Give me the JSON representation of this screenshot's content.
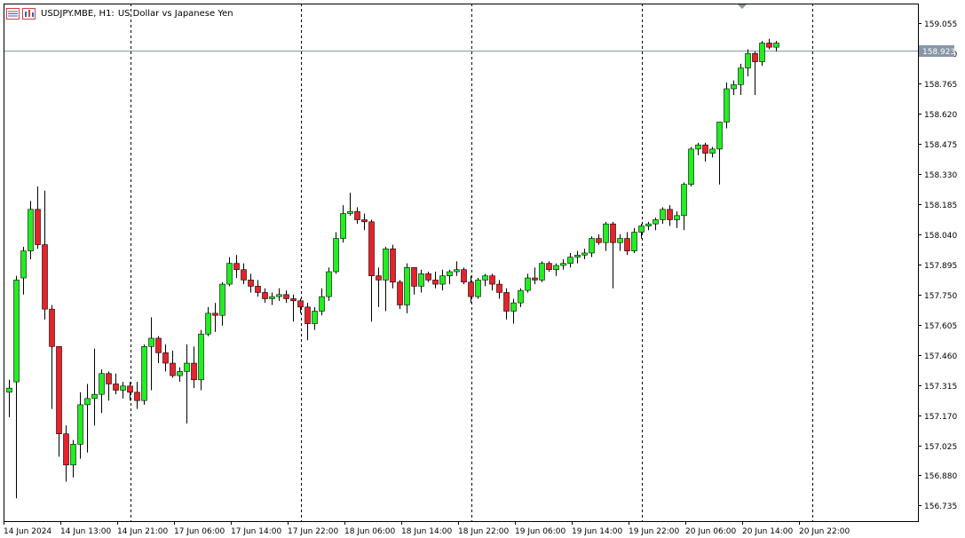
{
  "header": {
    "symbol": "USDJPY.MBE, H1:",
    "description": "US Dollar vs Japanese Yen",
    "icons": [
      "list-icon",
      "chart-icon"
    ]
  },
  "price_label": "158.923",
  "colors": {
    "bull": "#22ee22",
    "bear": "#e8222a",
    "wick": "#000000",
    "background": "#ffffff",
    "price_line": "#8896a8",
    "price_label_bg": "#8896a8"
  },
  "chart_data": {
    "type": "candlestick",
    "symbol": "USDJPY.MBE",
    "timeframe": "H1",
    "ylim": [
      156.66,
      159.15
    ],
    "y_ticks": [
      "159.055",
      "158.910",
      "158.765",
      "158.620",
      "158.475",
      "158.330",
      "158.185",
      "158.040",
      "157.895",
      "157.750",
      "157.605",
      "157.460",
      "157.315",
      "157.170",
      "157.025",
      "156.880",
      "156.735"
    ],
    "x_ticks": [
      "14 Jun 2024",
      "14 Jun 13:00",
      "14 Jun 21:00",
      "17 Jun 06:00",
      "17 Jun 14:00",
      "17 Jun 22:00",
      "18 Jun 06:00",
      "18 Jun 14:00",
      "18 Jun 22:00",
      "19 Jun 06:00",
      "19 Jun 14:00",
      "19 Jun 22:00",
      "20 Jun 06:00",
      "20 Jun 14:00",
      "20 Jun 22:00"
    ],
    "period_separators": [
      "14 Jun 21:00",
      "17 Jun 22:00",
      "18 Jun 22:00",
      "19 Jun 22:00",
      "20 Jun 22:00"
    ],
    "current_price": 158.923,
    "candles": [
      [
        157.28,
        157.34,
        157.16,
        157.3
      ],
      [
        157.33,
        157.84,
        156.77,
        157.82
      ],
      [
        157.83,
        157.98,
        157.75,
        157.96
      ],
      [
        157.96,
        158.2,
        157.92,
        158.16
      ],
      [
        158.16,
        158.27,
        157.97,
        157.99
      ],
      [
        157.99,
        158.25,
        157.63,
        157.68
      ],
      [
        157.68,
        157.7,
        157.2,
        157.5
      ],
      [
        157.5,
        157.5,
        156.97,
        157.08
      ],
      [
        157.08,
        157.12,
        156.85,
        156.93
      ],
      [
        156.93,
        157.05,
        156.87,
        157.03
      ],
      [
        157.03,
        157.28,
        156.96,
        157.22
      ],
      [
        157.22,
        157.32,
        156.99,
        157.25
      ],
      [
        157.25,
        157.49,
        157.12,
        157.27
      ],
      [
        157.27,
        157.39,
        157.18,
        157.37
      ],
      [
        157.37,
        157.38,
        157.24,
        157.32
      ],
      [
        157.32,
        157.37,
        157.27,
        157.29
      ],
      [
        157.29,
        157.33,
        157.25,
        157.31
      ],
      [
        157.31,
        157.33,
        157.24,
        157.28
      ],
      [
        157.28,
        157.33,
        157.2,
        157.24
      ],
      [
        157.24,
        157.51,
        157.22,
        157.5
      ],
      [
        157.5,
        157.64,
        157.29,
        157.54
      ],
      [
        157.54,
        157.55,
        157.42,
        157.47
      ],
      [
        157.47,
        157.51,
        157.38,
        157.42
      ],
      [
        157.42,
        157.48,
        157.35,
        157.36
      ],
      [
        157.36,
        157.4,
        157.33,
        157.38
      ],
      [
        157.38,
        157.51,
        157.13,
        157.42
      ],
      [
        157.42,
        157.5,
        157.3,
        157.34
      ],
      [
        157.34,
        157.58,
        157.29,
        157.56
      ],
      [
        157.56,
        157.69,
        157.55,
        157.66
      ],
      [
        157.66,
        157.71,
        157.57,
        157.65
      ],
      [
        157.65,
        157.81,
        157.6,
        157.8
      ],
      [
        157.8,
        157.93,
        157.79,
        157.9
      ],
      [
        157.9,
        157.94,
        157.83,
        157.87
      ],
      [
        157.87,
        157.9,
        157.8,
        157.82
      ],
      [
        157.82,
        157.85,
        157.76,
        157.79
      ],
      [
        157.79,
        157.82,
        157.74,
        157.76
      ],
      [
        157.76,
        157.78,
        157.71,
        157.73
      ],
      [
        157.73,
        157.76,
        157.7,
        157.74
      ],
      [
        157.74,
        157.78,
        157.72,
        157.75
      ],
      [
        157.75,
        157.77,
        157.71,
        157.73
      ],
      [
        157.73,
        157.75,
        157.62,
        157.72
      ],
      [
        157.72,
        157.73,
        157.66,
        157.69
      ],
      [
        157.69,
        157.71,
        157.53,
        157.61
      ],
      [
        157.61,
        157.69,
        157.58,
        157.67
      ],
      [
        157.67,
        157.78,
        157.65,
        157.74
      ],
      [
        157.74,
        157.88,
        157.72,
        157.86
      ],
      [
        157.86,
        158.05,
        157.85,
        158.02
      ],
      [
        158.02,
        158.18,
        158.0,
        158.14
      ],
      [
        158.14,
        158.24,
        158.13,
        158.15
      ],
      [
        158.15,
        158.17,
        158.09,
        158.11
      ],
      [
        158.11,
        158.14,
        158.06,
        158.1
      ],
      [
        158.1,
        158.11,
        157.62,
        157.84
      ],
      [
        157.84,
        157.88,
        157.69,
        157.82
      ],
      [
        157.82,
        157.98,
        157.67,
        157.97
      ],
      [
        157.97,
        157.99,
        157.78,
        157.81
      ],
      [
        157.81,
        157.82,
        157.68,
        157.7
      ],
      [
        157.7,
        157.9,
        157.66,
        157.88
      ],
      [
        157.88,
        157.88,
        157.75,
        157.79
      ],
      [
        157.79,
        157.87,
        157.76,
        157.85
      ],
      [
        157.85,
        157.86,
        157.81,
        157.82
      ],
      [
        157.82,
        157.86,
        157.78,
        157.8
      ],
      [
        157.8,
        157.87,
        157.77,
        157.84
      ],
      [
        157.84,
        157.87,
        157.8,
        157.86
      ],
      [
        157.86,
        157.91,
        157.84,
        157.87
      ],
      [
        157.87,
        157.88,
        157.8,
        157.81
      ],
      [
        157.81,
        157.84,
        157.71,
        157.74
      ],
      [
        157.74,
        157.83,
        157.73,
        157.82
      ],
      [
        157.82,
        157.85,
        157.79,
        157.84
      ],
      [
        157.84,
        157.85,
        157.77,
        157.8
      ],
      [
        157.8,
        157.82,
        157.73,
        157.76
      ],
      [
        157.76,
        157.78,
        157.63,
        157.67
      ],
      [
        157.67,
        157.73,
        157.61,
        157.71
      ],
      [
        157.71,
        157.78,
        157.69,
        157.77
      ],
      [
        157.77,
        157.85,
        157.76,
        157.83
      ],
      [
        157.83,
        157.88,
        157.8,
        157.82
      ],
      [
        157.82,
        157.91,
        157.81,
        157.9
      ],
      [
        157.9,
        157.91,
        157.86,
        157.87
      ],
      [
        157.87,
        157.9,
        157.84,
        157.89
      ],
      [
        157.89,
        157.92,
        157.87,
        157.9
      ],
      [
        157.9,
        157.95,
        157.88,
        157.93
      ],
      [
        157.93,
        157.96,
        157.9,
        157.94
      ],
      [
        157.94,
        157.97,
        157.92,
        157.95
      ],
      [
        157.95,
        158.03,
        157.93,
        158.02
      ],
      [
        158.02,
        158.04,
        157.99,
        158.0
      ],
      [
        158.0,
        158.1,
        157.96,
        158.09
      ],
      [
        158.09,
        158.1,
        157.78,
        158.0
      ],
      [
        158.0,
        158.04,
        157.96,
        158.02
      ],
      [
        158.02,
        158.05,
        157.94,
        157.96
      ],
      [
        157.96,
        158.07,
        157.95,
        158.05
      ],
      [
        158.05,
        158.09,
        158.02,
        158.08
      ],
      [
        158.08,
        158.1,
        158.06,
        158.09
      ],
      [
        158.09,
        158.12,
        158.06,
        158.11
      ],
      [
        158.11,
        158.17,
        158.09,
        158.16
      ],
      [
        158.16,
        158.18,
        158.08,
        158.11
      ],
      [
        158.11,
        158.15,
        158.07,
        158.13
      ],
      [
        158.13,
        158.29,
        158.06,
        158.28
      ],
      [
        158.28,
        158.46,
        158.27,
        158.45
      ],
      [
        158.45,
        158.48,
        158.42,
        158.47
      ],
      [
        158.47,
        158.48,
        158.39,
        158.43
      ],
      [
        158.43,
        158.46,
        158.41,
        158.45
      ],
      [
        158.45,
        158.58,
        158.28,
        158.58
      ],
      [
        158.58,
        158.77,
        158.55,
        158.74
      ],
      [
        158.74,
        158.78,
        158.71,
        158.76
      ],
      [
        158.76,
        158.86,
        158.71,
        158.84
      ],
      [
        158.84,
        158.93,
        158.8,
        158.91
      ],
      [
        158.91,
        158.92,
        158.71,
        158.87
      ],
      [
        158.87,
        158.97,
        158.85,
        158.96
      ],
      [
        158.96,
        158.98,
        158.93,
        158.94
      ],
      [
        158.94,
        158.97,
        158.92,
        158.96
      ]
    ]
  }
}
